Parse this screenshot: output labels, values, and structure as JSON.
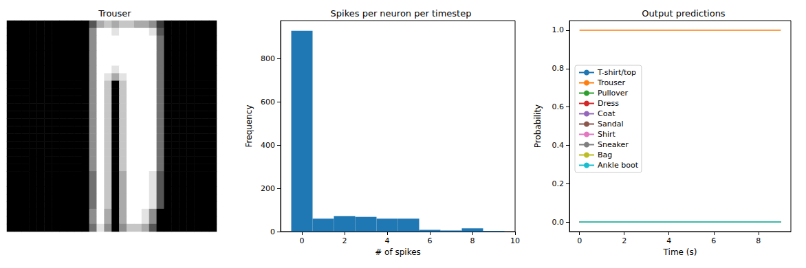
{
  "chart_data": [
    {
      "type": "image",
      "title": "Trouser",
      "tick_labels": false,
      "pixels": [
        [
          0,
          0,
          0,
          0,
          0,
          0,
          0,
          0,
          0,
          0,
          0,
          0.3,
          0.6,
          0.7,
          0.6,
          0.7,
          0.7,
          0.6,
          0.6,
          0.5,
          0.2,
          0,
          0,
          0,
          0,
          0,
          0,
          0
        ],
        [
          0,
          0,
          0,
          0,
          0,
          0,
          0,
          0,
          0,
          0,
          0,
          0.5,
          0.9,
          0.9,
          0.8,
          0.9,
          0.9,
          0.9,
          0.9,
          0.8,
          0.3,
          0,
          0,
          0,
          0,
          0,
          0,
          0
        ],
        [
          0,
          0,
          0,
          0,
          0,
          0,
          0,
          0,
          0,
          0,
          0,
          0.5,
          0.9,
          0.9,
          0.9,
          0.9,
          0.9,
          0.9,
          0.9,
          0.9,
          0.4,
          0,
          0,
          0,
          0,
          0,
          0,
          0
        ],
        [
          0,
          0,
          0,
          0,
          0,
          0,
          0,
          0,
          0,
          0,
          0,
          0.5,
          0.9,
          0.9,
          0.9,
          0.9,
          0.9,
          0.9,
          0.9,
          0.9,
          0.4,
          0,
          0,
          0,
          0,
          0,
          0,
          0
        ],
        [
          0,
          0,
          0,
          0,
          0,
          0,
          0,
          0,
          0,
          0,
          0,
          0.5,
          0.9,
          0.9,
          0.9,
          0.9,
          0.9,
          0.9,
          0.9,
          0.9,
          0.4,
          0,
          0,
          0,
          0,
          0,
          0,
          0
        ],
        [
          0,
          0,
          0,
          0,
          0,
          0,
          0,
          0,
          0,
          0,
          0,
          0.5,
          0.9,
          0.9,
          0.9,
          0.9,
          0.9,
          0.9,
          0.9,
          0.9,
          0.4,
          0,
          0,
          0,
          0,
          0,
          0,
          0
        ],
        [
          0,
          0,
          0,
          0,
          0,
          0,
          0,
          0,
          0,
          0,
          0,
          0.5,
          0.9,
          0.9,
          0.8,
          0.9,
          0.9,
          0.9,
          0.9,
          0.9,
          0.4,
          0,
          0,
          0,
          0,
          0,
          0,
          0
        ],
        [
          0,
          0,
          0,
          0,
          0,
          0,
          0,
          0,
          0,
          0,
          0,
          0.5,
          0.9,
          0.8,
          0.6,
          0.8,
          0.9,
          0.9,
          0.9,
          0.9,
          0.4,
          0,
          0,
          0,
          0,
          0,
          0,
          0
        ],
        [
          0,
          0,
          0,
          0,
          0,
          0,
          0,
          0,
          0,
          0,
          0,
          0.5,
          0.9,
          0.7,
          0,
          0.7,
          0.9,
          0.9,
          0.9,
          0.9,
          0.4,
          0,
          0,
          0,
          0,
          0,
          0,
          0
        ],
        [
          0,
          0,
          0,
          0,
          0,
          0,
          0,
          0,
          0,
          0,
          0,
          0.5,
          0.9,
          0.7,
          0,
          0.7,
          0.9,
          0.9,
          0.9,
          0.9,
          0.4,
          0,
          0,
          0,
          0,
          0,
          0,
          0
        ],
        [
          0,
          0,
          0,
          0,
          0,
          0,
          0,
          0,
          0,
          0,
          0,
          0.5,
          0.9,
          0.7,
          0,
          0.7,
          0.9,
          0.9,
          0.9,
          0.9,
          0.4,
          0,
          0,
          0,
          0,
          0,
          0,
          0
        ],
        [
          0,
          0,
          0,
          0,
          0,
          0,
          0,
          0,
          0,
          0,
          0,
          0.5,
          0.9,
          0.7,
          0,
          0.7,
          0.9,
          0.9,
          0.9,
          0.9,
          0.4,
          0,
          0,
          0,
          0,
          0,
          0,
          0
        ],
        [
          0,
          0,
          0,
          0,
          0,
          0,
          0,
          0,
          0,
          0,
          0,
          0.5,
          0.9,
          0.7,
          0,
          0.7,
          0.9,
          0.9,
          0.9,
          0.9,
          0.4,
          0,
          0,
          0,
          0,
          0,
          0,
          0
        ],
        [
          0,
          0,
          0,
          0,
          0,
          0,
          0,
          0,
          0,
          0,
          0,
          0.5,
          0.9,
          0.7,
          0,
          0.7,
          0.9,
          0.9,
          0.9,
          0.9,
          0.4,
          0,
          0,
          0,
          0,
          0,
          0,
          0
        ],
        [
          0,
          0,
          0,
          0,
          0,
          0,
          0,
          0,
          0,
          0,
          0,
          0.5,
          0.9,
          0.7,
          0,
          0.7,
          0.9,
          0.9,
          0.9,
          0.9,
          0.4,
          0,
          0,
          0,
          0,
          0,
          0,
          0
        ],
        [
          0,
          0,
          0,
          0,
          0,
          0,
          0,
          0,
          0,
          0,
          0,
          0.5,
          0.9,
          0.7,
          0,
          0.7,
          0.9,
          0.9,
          0.9,
          0.9,
          0.4,
          0,
          0,
          0,
          0,
          0,
          0,
          0
        ],
        [
          0,
          0,
          0,
          0,
          0,
          0,
          0,
          0,
          0,
          0,
          0,
          0.5,
          0.9,
          0.7,
          0,
          0.7,
          0.9,
          0.9,
          0.9,
          0.9,
          0.4,
          0,
          0,
          0,
          0,
          0,
          0,
          0
        ],
        [
          0,
          0,
          0,
          0,
          0,
          0,
          0,
          0,
          0,
          0,
          0,
          0.5,
          0.9,
          0.7,
          0,
          0.7,
          0.9,
          0.9,
          0.9,
          0.9,
          0.4,
          0,
          0,
          0,
          0,
          0,
          0,
          0
        ],
        [
          0,
          0,
          0,
          0,
          0,
          0,
          0,
          0,
          0,
          0,
          0,
          0.5,
          0.9,
          0.7,
          0,
          0.7,
          0.9,
          0.9,
          0.9,
          0.9,
          0.4,
          0,
          0,
          0,
          0,
          0,
          0,
          0
        ],
        [
          0,
          0,
          0,
          0,
          0,
          0,
          0,
          0,
          0,
          0,
          0,
          0.5,
          0.9,
          0.7,
          0,
          0.7,
          0.9,
          0.9,
          0.9,
          0.9,
          0.4,
          0,
          0,
          0,
          0,
          0,
          0,
          0
        ],
        [
          0,
          0,
          0,
          0,
          0,
          0,
          0,
          0,
          0,
          0,
          0,
          0.4,
          0.9,
          0.7,
          0,
          0.6,
          0.9,
          0.9,
          0.9,
          0.8,
          0.3,
          0,
          0,
          0,
          0,
          0,
          0,
          0
        ],
        [
          0,
          0,
          0,
          0,
          0,
          0,
          0,
          0,
          0,
          0,
          0,
          0.4,
          0.9,
          0.7,
          0,
          0.6,
          0.9,
          0.9,
          0.9,
          0.8,
          0.3,
          0,
          0,
          0,
          0,
          0,
          0,
          0
        ],
        [
          0,
          0,
          0,
          0,
          0,
          0,
          0,
          0,
          0,
          0,
          0,
          0.4,
          0.9,
          0.7,
          0,
          0.6,
          0.9,
          0.9,
          0.9,
          0.8,
          0.3,
          0,
          0,
          0,
          0,
          0,
          0,
          0
        ],
        [
          0,
          0,
          0,
          0,
          0,
          0,
          0,
          0,
          0,
          0,
          0,
          0.4,
          0.9,
          0.7,
          0,
          0.6,
          0.9,
          0.9,
          0.9,
          0.8,
          0.3,
          0,
          0,
          0,
          0,
          0,
          0,
          0
        ],
        [
          0,
          0,
          0,
          0,
          0,
          0,
          0,
          0,
          0,
          0,
          0,
          0.4,
          0.9,
          0.7,
          0,
          0.6,
          0.9,
          0.9,
          0.9,
          0.8,
          0.3,
          0,
          0,
          0,
          0,
          0,
          0,
          0
        ],
        [
          0,
          0,
          0,
          0,
          0,
          0,
          0,
          0,
          0,
          0,
          0,
          0.5,
          0.9,
          0.6,
          0,
          0.6,
          0.9,
          0.9,
          0.8,
          0.5,
          0,
          0,
          0,
          0,
          0,
          0,
          0,
          0
        ],
        [
          0,
          0,
          0,
          0,
          0,
          0,
          0,
          0,
          0,
          0,
          0,
          0.5,
          0.9,
          0.6,
          0,
          0.6,
          0.9,
          0.9,
          0.8,
          0.5,
          0,
          0,
          0,
          0,
          0,
          0,
          0,
          0
        ],
        [
          0,
          0,
          0,
          0,
          0,
          0,
          0,
          0,
          0,
          0,
          0,
          0.4,
          0.8,
          0.5,
          0,
          0.5,
          0.7,
          0.7,
          0.6,
          0.3,
          0,
          0,
          0,
          0,
          0,
          0,
          0,
          0
        ]
      ]
    },
    {
      "type": "histogram",
      "title": "Spikes per neuron per timestep",
      "x_label": "# of spikes",
      "y_label": "Frequency",
      "bins": [
        -0.5,
        0.5,
        1.5,
        2.5,
        3.5,
        4.5,
        5.5,
        6.5,
        7.5,
        8.5,
        9.5
      ],
      "counts": [
        930,
        60,
        72,
        68,
        60,
        60,
        8,
        5,
        15,
        3
      ],
      "color": "#1f77b4",
      "xlim": [
        -1,
        10
      ],
      "xticks": [
        0,
        2,
        4,
        6,
        8,
        10
      ],
      "ylim": [
        0,
        977
      ],
      "yticks": [
        0,
        200,
        400,
        600,
        800
      ],
      "grid": false
    },
    {
      "type": "line",
      "title": "Output predictions",
      "x_label": "Time (s)",
      "y_label": "Probability",
      "x": [
        0,
        1,
        2,
        3,
        4,
        5,
        6,
        7,
        8,
        9
      ],
      "series": [
        {
          "name": "T-shirt/top",
          "color": "#1f77b4",
          "values": [
            0,
            0,
            0,
            0,
            0,
            0,
            0,
            0,
            0,
            0
          ]
        },
        {
          "name": "Trouser",
          "color": "#ff7f0e",
          "values": [
            1,
            1,
            1,
            1,
            1,
            1,
            1,
            1,
            1,
            1
          ]
        },
        {
          "name": "Pullover",
          "color": "#2ca02c",
          "values": [
            0,
            0,
            0,
            0,
            0,
            0,
            0,
            0,
            0,
            0
          ]
        },
        {
          "name": "Dress",
          "color": "#d62728",
          "values": [
            0,
            0,
            0,
            0,
            0,
            0,
            0,
            0,
            0,
            0
          ]
        },
        {
          "name": "Coat",
          "color": "#9467bd",
          "values": [
            0,
            0,
            0,
            0,
            0,
            0,
            0,
            0,
            0,
            0
          ]
        },
        {
          "name": "Sandal",
          "color": "#8c564b",
          "values": [
            0,
            0,
            0,
            0,
            0,
            0,
            0,
            0,
            0,
            0
          ]
        },
        {
          "name": "Shirt",
          "color": "#e377c2",
          "values": [
            0,
            0,
            0,
            0,
            0,
            0,
            0,
            0,
            0,
            0
          ]
        },
        {
          "name": "Sneaker",
          "color": "#7f7f7f",
          "values": [
            0,
            0,
            0,
            0,
            0,
            0,
            0,
            0,
            0,
            0
          ]
        },
        {
          "name": "Bag",
          "color": "#bcbd22",
          "values": [
            0,
            0,
            0,
            0,
            0,
            0,
            0,
            0,
            0,
            0
          ]
        },
        {
          "name": "Ankle boot",
          "color": "#17becf",
          "values": [
            0,
            0,
            0,
            0,
            0,
            0,
            0,
            0,
            0,
            0
          ]
        }
      ],
      "xlim": [
        -0.45,
        9.45
      ],
      "xticks": [
        0,
        2,
        4,
        6,
        8
      ],
      "ylim": [
        -0.05,
        1.05
      ],
      "yticks": [
        {
          "value": 0,
          "label": "0.0"
        },
        {
          "value": 0.2,
          "label": "0.2"
        },
        {
          "value": 0.4,
          "label": "0.4"
        },
        {
          "value": 0.6,
          "label": "0.6"
        },
        {
          "value": 0.8,
          "label": "0.8"
        },
        {
          "value": 1,
          "label": "1.0"
        }
      ],
      "legend": "left",
      "grid": false
    }
  ]
}
